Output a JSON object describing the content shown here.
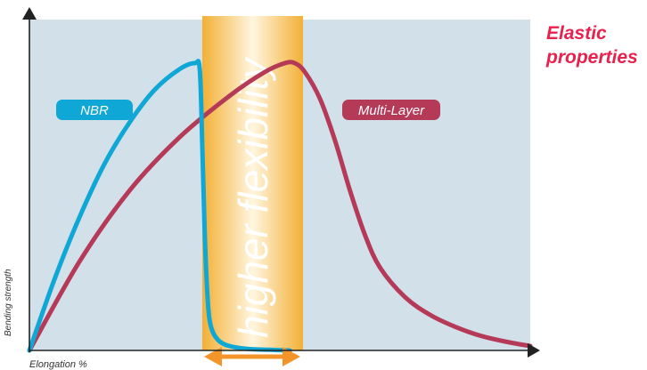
{
  "side_title": "Elastic properties",
  "colors": {
    "background": "#d2e0ea",
    "nbr": "#0ea7d6",
    "multilayer": "#b53a58",
    "band_edge": "#f3b035",
    "band_center": "#fff6e0",
    "arrow": "#f3952a",
    "title": "#e8214e",
    "axis": "#222222"
  },
  "chart_data": {
    "type": "line",
    "title": "",
    "xlabel": "Elongation %",
    "ylabel": "Bending strength",
    "xlim": [
      0,
      100
    ],
    "ylim": [
      0,
      100
    ],
    "grid": false,
    "annotation": {
      "text": "higher flexibility",
      "x_range": [
        34,
        53
      ]
    },
    "series": [
      {
        "name": "NBR",
        "points": [
          [
            0,
            0
          ],
          [
            5,
            24
          ],
          [
            10,
            45
          ],
          [
            15,
            63
          ],
          [
            20,
            77
          ],
          [
            25,
            88
          ],
          [
            30,
            95
          ],
          [
            33,
            97
          ],
          [
            34,
            95
          ],
          [
            34.5,
            70
          ],
          [
            35,
            40
          ],
          [
            35.5,
            20
          ],
          [
            36,
            10
          ],
          [
            37,
            5
          ],
          [
            39,
            2
          ],
          [
            43,
            0.6
          ],
          [
            48,
            0.2
          ],
          [
            52,
            0
          ]
        ]
      },
      {
        "name": "Multi-Layer",
        "points": [
          [
            0,
            0
          ],
          [
            10,
            30
          ],
          [
            20,
            54
          ],
          [
            30,
            72
          ],
          [
            40,
            86
          ],
          [
            47,
            94
          ],
          [
            51,
            97
          ],
          [
            53,
            97
          ],
          [
            55,
            94
          ],
          [
            58,
            85
          ],
          [
            61,
            71
          ],
          [
            64,
            54
          ],
          [
            67,
            39
          ],
          [
            70,
            28
          ],
          [
            75,
            18
          ],
          [
            80,
            12
          ],
          [
            85,
            8
          ],
          [
            90,
            5
          ],
          [
            95,
            3
          ],
          [
            100,
            1.5
          ]
        ]
      }
    ]
  }
}
